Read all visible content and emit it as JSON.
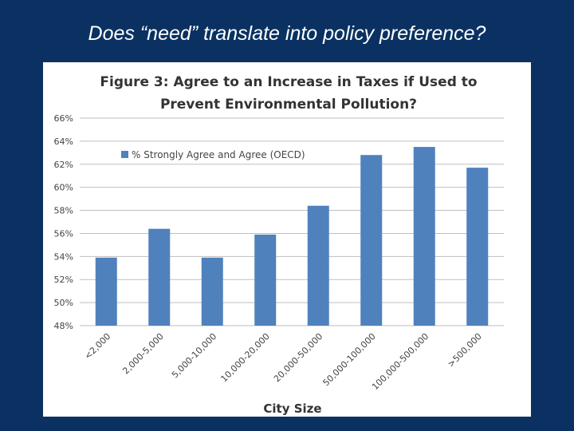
{
  "slide": {
    "title": "Does “need” translate into policy preference?"
  },
  "colors": {
    "background": "#0a3161",
    "bar": "#4f81bd",
    "grid": "#bfbfbf"
  },
  "chart_data": {
    "type": "bar",
    "title_lines": [
      "Figure 3: Agree to an Increase in Taxes if Used to",
      "Prevent Environmental Pollution?"
    ],
    "categories": [
      "<2,000",
      "2,000-5,000",
      "5,000-10,000",
      "10,000-20,000",
      "20,000-50,000",
      "50,000-100,000",
      "100,000-500,000",
      ">500,000"
    ],
    "series": [
      {
        "name": "% Strongly Agree and Agree (OECD)",
        "values": [
          53.9,
          56.4,
          53.9,
          55.9,
          58.4,
          62.8,
          63.5,
          61.7
        ]
      }
    ],
    "xlabel": "City Size",
    "ylabel": "",
    "ylim": [
      48,
      66
    ],
    "yticks": [
      "48%",
      "50%",
      "52%",
      "54%",
      "56%",
      "58%",
      "60%",
      "62%",
      "64%",
      "66%"
    ],
    "ytick_values": [
      48,
      50,
      52,
      54,
      56,
      58,
      60,
      62,
      64,
      66
    ],
    "grid": true,
    "legend_position": "top-left"
  }
}
